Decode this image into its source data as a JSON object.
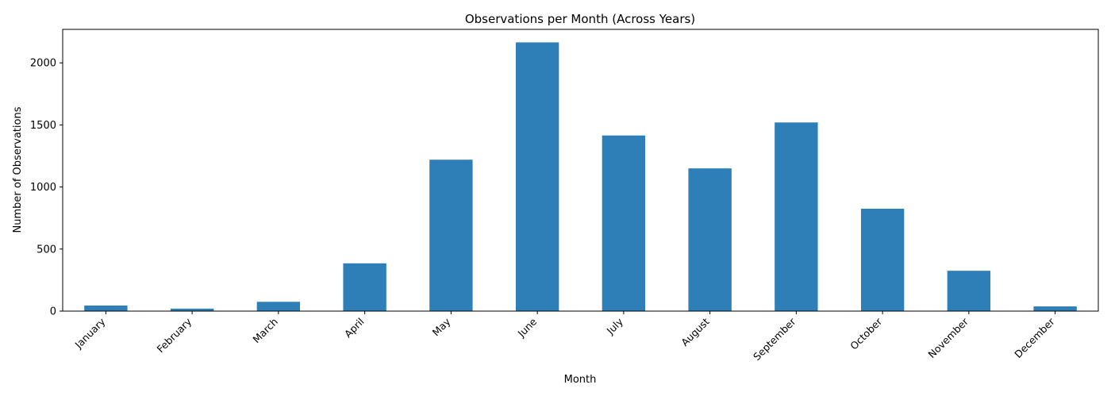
{
  "chart_data": {
    "type": "bar",
    "title": "Observations per Month (Across Years)",
    "xlabel": "Month",
    "ylabel": "Number of Observations",
    "categories": [
      "January",
      "February",
      "March",
      "April",
      "May",
      "June",
      "July",
      "August",
      "September",
      "October",
      "November",
      "December"
    ],
    "values": [
      45,
      20,
      75,
      385,
      1220,
      2165,
      1415,
      1150,
      1520,
      825,
      325,
      38
    ],
    "ylim": [
      0,
      2270
    ],
    "yticks": [
      0,
      500,
      1000,
      1500,
      2000
    ],
    "grid": false,
    "legend": "none",
    "bar_color": "#2e7fb8"
  }
}
